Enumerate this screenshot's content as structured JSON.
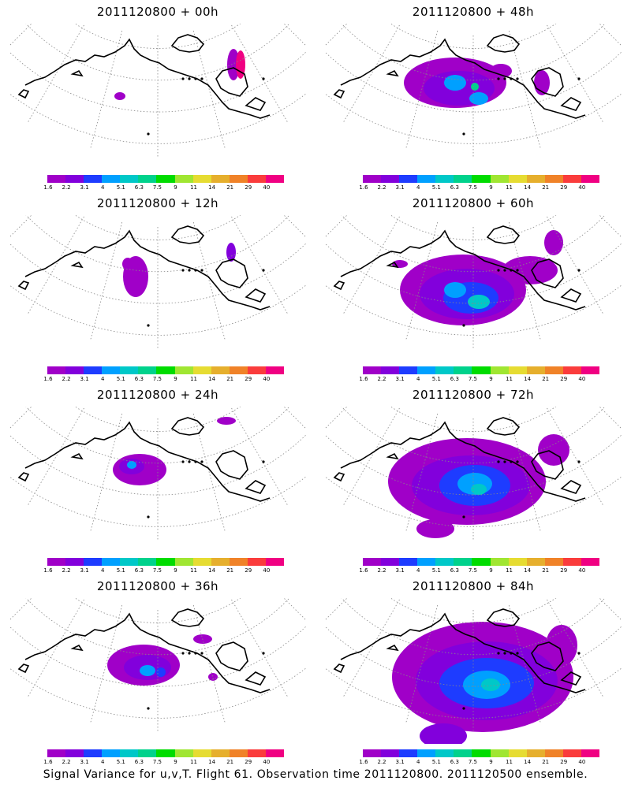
{
  "footer": "Signal Variance for u,v,T. Flight 61. Observation time 2011120800. 2011120500 ensemble.",
  "colorbar": {
    "levels": [
      "1.6",
      "2.2",
      "3.1",
      "4",
      "5.1",
      "6.3",
      "7.5",
      "9",
      "11",
      "14",
      "21",
      "29",
      "40"
    ],
    "colors": [
      "#a000c8",
      "#8200dc",
      "#1e3cff",
      "#00a0ff",
      "#00c8c8",
      "#00d28c",
      "#00dc00",
      "#a0e632",
      "#e6dc32",
      "#e6af2d",
      "#f08228",
      "#fa3c3c",
      "#f00082"
    ]
  },
  "chart_data": [
    {
      "type": "heatmap",
      "title": "2011120800 + 00h",
      "lead_hours": 0
    },
    {
      "type": "heatmap",
      "title": "2011120800 + 48h",
      "lead_hours": 48
    },
    {
      "type": "heatmap",
      "title": "2011120800 + 12h",
      "lead_hours": 12
    },
    {
      "type": "heatmap",
      "title": "2011120800 + 60h",
      "lead_hours": 60
    },
    {
      "type": "heatmap",
      "title": "2011120800 + 24h",
      "lead_hours": 24
    },
    {
      "type": "heatmap",
      "title": "2011120800 + 72h",
      "lead_hours": 72
    },
    {
      "type": "heatmap",
      "title": "2011120800 + 36h",
      "lead_hours": 36
    },
    {
      "type": "heatmap",
      "title": "2011120800 + 84h",
      "lead_hours": 84
    }
  ]
}
